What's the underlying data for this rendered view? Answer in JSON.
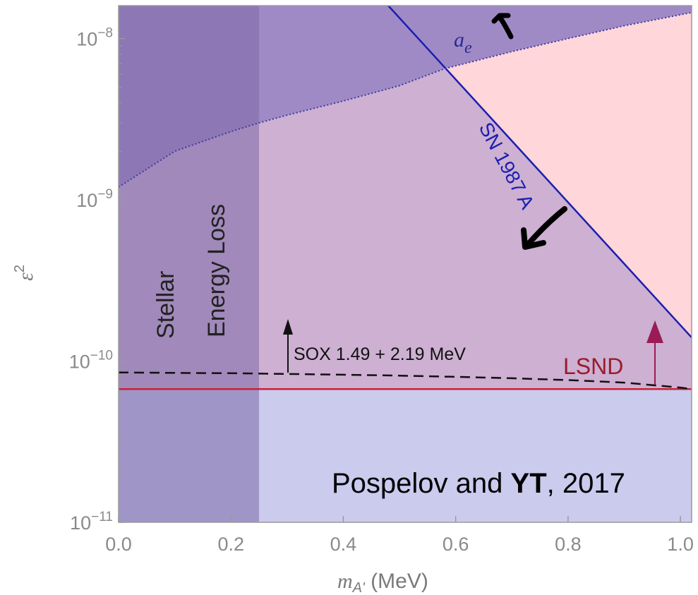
{
  "chart_data": {
    "type": "area",
    "xlabel_var": "m",
    "xlabel_sub": "A'",
    "xlabel_unit": " (MeV)",
    "ylabel_var": "ε",
    "ylabel_sup": "2",
    "xlim": [
      0.0,
      1.02
    ],
    "ylim": [
      1e-11,
      1.6e-08
    ],
    "yscale": "log",
    "x_ticks": [
      {
        "value": 0.0,
        "label": "0.0"
      },
      {
        "value": 0.2,
        "label": "0.2"
      },
      {
        "value": 0.4,
        "label": "0.4"
      },
      {
        "value": 0.6,
        "label": "0.6"
      },
      {
        "value": 0.8,
        "label": "0.8"
      },
      {
        "value": 1.0,
        "label": "1.0"
      }
    ],
    "y_ticks": [
      {
        "value": 1e-11,
        "base": "10",
        "exp": "−11"
      },
      {
        "value": 1e-10,
        "base": "10",
        "exp": "−10"
      },
      {
        "value": 1e-09,
        "base": "10",
        "exp": "−9"
      },
      {
        "value": 1e-08,
        "base": "10",
        "exp": "−8"
      }
    ],
    "regions": {
      "stellar_energy_loss": {
        "x_max": 0.25,
        "label_line1": "Stellar",
        "label_line2": "Energy Loss",
        "color": "#7e6aa8"
      },
      "excluded_below_lsnd": {
        "color": "#cbcbee"
      },
      "sn1987a_allowed": {
        "color": "#ffd6d9"
      },
      "excluded_default": {
        "color": "#cdb0d2"
      },
      "ae_excluded": {
        "color": "#a08ac6"
      }
    },
    "series": [
      {
        "name": "LSND",
        "style": "solid",
        "color": "#c8203a",
        "x": [
          0.0,
          1.02
        ],
        "y": [
          6.7e-11,
          6.7e-11
        ]
      },
      {
        "name": "SOX 1.49 + 2.19 MeV",
        "style": "dashed",
        "color": "#111111",
        "x": [
          0.0,
          0.1,
          0.2,
          0.3,
          0.4,
          0.5,
          0.6,
          0.7,
          0.8,
          0.9,
          1.0,
          1.02
        ],
        "y": [
          8.5e-11,
          8.45e-11,
          8.4e-11,
          8.32e-11,
          8.23e-11,
          8.12e-11,
          7.98e-11,
          7.82e-11,
          7.62e-11,
          7.35e-11,
          6.85e-11,
          6.7e-11
        ]
      },
      {
        "name": "SN 1987 A",
        "style": "solid",
        "color": "#1a1fb0",
        "x": [
          0.48,
          1.02
        ],
        "y": [
          1.6e-08,
          1.4e-10
        ]
      },
      {
        "name": "a_e",
        "style": "dotted",
        "color": "#3a3aa0",
        "x": [
          0.0,
          0.1,
          0.2,
          0.25,
          0.3,
          0.4,
          0.5,
          0.58,
          0.7,
          0.8,
          0.9,
          1.02
        ],
        "y": [
          1.2e-09,
          2e-09,
          2.65e-09,
          3e-09,
          3.35e-09,
          4.1e-09,
          5.1e-09,
          6.5e-09,
          8.3e-09,
          1e-08,
          1.2e-08,
          1.45e-08
        ]
      }
    ],
    "annotations": {
      "sn_label": "SN 1987 A",
      "ae_label_var": "a",
      "ae_label_sub": "e",
      "sox_label": "SOX 1.49  +  2.19 MeV",
      "lsnd_label": "LSND",
      "credit_plain1": "Pospelov and ",
      "credit_bold": "YT",
      "credit_plain2": ", 2017"
    }
  }
}
